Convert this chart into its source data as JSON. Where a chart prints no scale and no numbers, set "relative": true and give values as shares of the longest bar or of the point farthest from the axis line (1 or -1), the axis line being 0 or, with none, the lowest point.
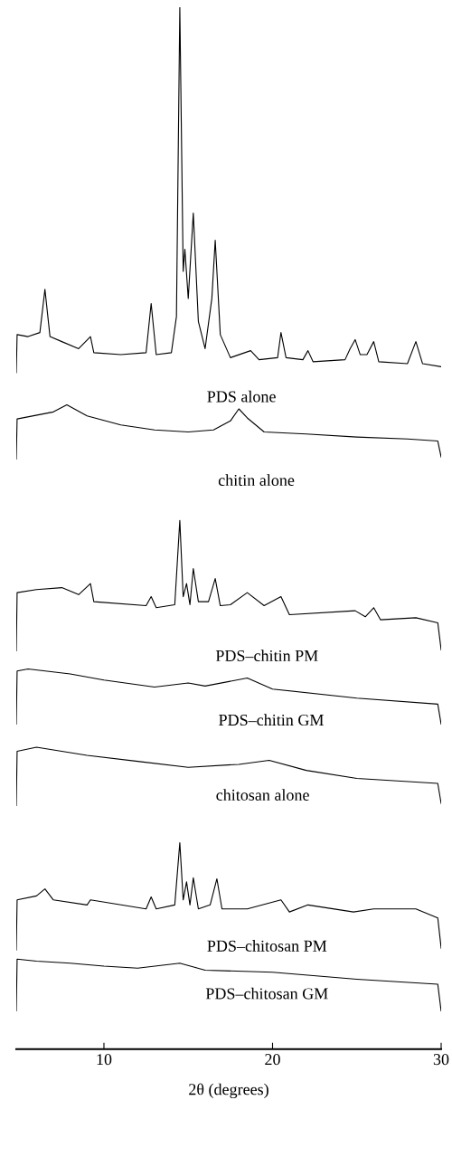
{
  "chart_data": {
    "type": "line",
    "relative": true,
    "xlim": [
      4.8,
      30
    ],
    "xticks": [
      10,
      20,
      30
    ],
    "xlabel": "2θ (degrees)",
    "tick_labels": "x",
    "annotations": [
      "PDS alone",
      "chitin alone",
      "PDS–chitin PM",
      "PDS–chitin GM",
      "chitosan alone",
      "PDS–chitosan PM",
      "PDS–chitosan GM"
    ],
    "series": [
      {
        "color": "#000000",
        "x": [
          4.8,
          4.85,
          5.5,
          6.2,
          6.5,
          6.8,
          7.5,
          8.5,
          9.2,
          9.4,
          11,
          12.5,
          12.8,
          13.1,
          14.0,
          14.3,
          14.5,
          14.7,
          14.8,
          15.0,
          15.3,
          15.6,
          16.0,
          16.4,
          16.6,
          16.9,
          17.5,
          18.7,
          19.2,
          20.3,
          20.5,
          20.8,
          21.8,
          22.1,
          22.4,
          24.3,
          24.6,
          24.9,
          25.2,
          25.6,
          26.0,
          26.3,
          28.0,
          28.5,
          28.9,
          30.0
        ],
        "values": [
          0.636,
          0.674,
          0.672,
          0.676,
          0.719,
          0.672,
          0.667,
          0.66,
          0.672,
          0.656,
          0.654,
          0.656,
          0.705,
          0.654,
          0.656,
          0.692,
          1.0,
          0.737,
          0.759,
          0.71,
          0.795,
          0.687,
          0.66,
          0.71,
          0.768,
          0.674,
          0.651,
          0.658,
          0.649,
          0.651,
          0.676,
          0.651,
          0.649,
          0.658,
          0.647,
          0.649,
          0.66,
          0.669,
          0.654,
          0.654,
          0.667,
          0.647,
          0.645,
          0.667,
          0.645,
          0.642
        ]
      },
      {
        "color": "#000000",
        "x": [
          4.8,
          4.85,
          7,
          7.8,
          9,
          11,
          13,
          15,
          16.5,
          17.5,
          18,
          18.5,
          19.5,
          22,
          25,
          28,
          29.8,
          30
        ],
        "values": [
          0.55,
          0.59,
          0.597,
          0.604,
          0.593,
          0.584,
          0.579,
          0.577,
          0.579,
          0.588,
          0.6,
          0.591,
          0.577,
          0.575,
          0.572,
          0.57,
          0.568,
          0.552
        ]
      },
      {
        "color": "#000000",
        "x": [
          4.8,
          4.85,
          6,
          7.5,
          8.5,
          9.2,
          9.4,
          12.5,
          12.8,
          13.1,
          14.2,
          14.5,
          14.7,
          14.9,
          15.1,
          15.3,
          15.6,
          16.2,
          16.6,
          16.9,
          17.5,
          18.5,
          19.5,
          20.5,
          21,
          24.9,
          25.5,
          26,
          26.4,
          28.5,
          29.8,
          30
        ],
        "values": [
          0.359,
          0.417,
          0.42,
          0.422,
          0.415,
          0.426,
          0.408,
          0.404,
          0.413,
          0.402,
          0.405,
          0.489,
          0.413,
          0.426,
          0.405,
          0.441,
          0.408,
          0.408,
          0.431,
          0.404,
          0.405,
          0.417,
          0.404,
          0.413,
          0.395,
          0.399,
          0.393,
          0.402,
          0.39,
          0.392,
          0.387,
          0.36
        ]
      },
      {
        "color": "#000000",
        "x": [
          4.8,
          4.85,
          5.5,
          8,
          10,
          13,
          15,
          16,
          18.5,
          20,
          25,
          29.8,
          30
        ],
        "values": [
          0.286,
          0.339,
          0.341,
          0.336,
          0.33,
          0.323,
          0.327,
          0.324,
          0.332,
          0.321,
          0.312,
          0.306,
          0.286
        ]
      },
      {
        "color": "#000000",
        "x": [
          4.8,
          4.85,
          6,
          9,
          12,
          15,
          18,
          19.8,
          22,
          25,
          29.8,
          30
        ],
        "values": [
          0.205,
          0.259,
          0.263,
          0.255,
          0.249,
          0.243,
          0.246,
          0.25,
          0.24,
          0.232,
          0.227,
          0.207
        ]
      },
      {
        "color": "#000000",
        "x": [
          4.8,
          4.85,
          6,
          6.5,
          7,
          9,
          9.2,
          12.5,
          12.8,
          13.1,
          14.2,
          14.5,
          14.7,
          14.9,
          15.1,
          15.3,
          15.6,
          16.3,
          16.7,
          17,
          18.5,
          20.5,
          21,
          22.1,
          24.8,
          26,
          28.5,
          29.8,
          30
        ],
        "values": [
          0.061,
          0.111,
          0.115,
          0.122,
          0.111,
          0.106,
          0.111,
          0.102,
          0.114,
          0.102,
          0.106,
          0.168,
          0.111,
          0.129,
          0.106,
          0.133,
          0.102,
          0.106,
          0.132,
          0.102,
          0.102,
          0.111,
          0.099,
          0.106,
          0.099,
          0.102,
          0.102,
          0.093,
          0.063
        ]
      },
      {
        "color": "#000000",
        "x": [
          4.8,
          4.85,
          6,
          8,
          10,
          12,
          14.5,
          16,
          20,
          25,
          29.8,
          30
        ],
        "values": [
          0,
          0.052,
          0.05,
          0.048,
          0.045,
          0.043,
          0.048,
          0.041,
          0.039,
          0.032,
          0.027,
          0
        ]
      }
    ]
  }
}
